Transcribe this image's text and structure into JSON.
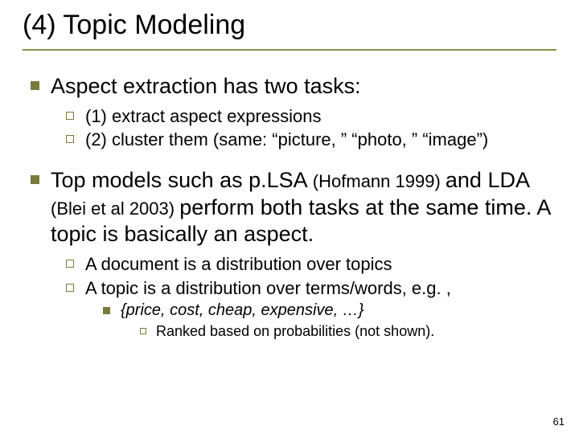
{
  "title": "(4) Topic Modeling",
  "bullets": {
    "b1": "Aspect extraction has two tasks:",
    "b1_1": "(1) extract aspect expressions",
    "b1_2": "(2) cluster them (same: “picture, ” “photo, ” “image”)",
    "b2_pre": "Top models such as ",
    "b2_plsa": "p.LSA",
    "b2_hof": " (Hofmann 1999) ",
    "b2_and": "and ",
    "b2_lda": "LDA",
    "b2_blei": " (Blei et al 2003) ",
    "b2_rest": "perform both tasks at the same time. A topic is basically an aspect.",
    "b2_1": "A document is a distribution over topics",
    "b2_2": "A topic is a distribution over terms/words, e.g. ,",
    "b2_2_1": "{price, cost, cheap, expensive, …}",
    "b2_2_1_1": "Ranked based on probabilities (not shown)."
  },
  "page_number": "61",
  "colors": {
    "accent": "#7a7a3a",
    "underline": "#8a8a4a",
    "text": "#000000",
    "bg": "#ffffff"
  },
  "fonts": {
    "title_size": 34,
    "l1_size": 27,
    "l2_size": 22,
    "l3_size": 20,
    "l4_size": 18,
    "pagenum_size": 13
  }
}
